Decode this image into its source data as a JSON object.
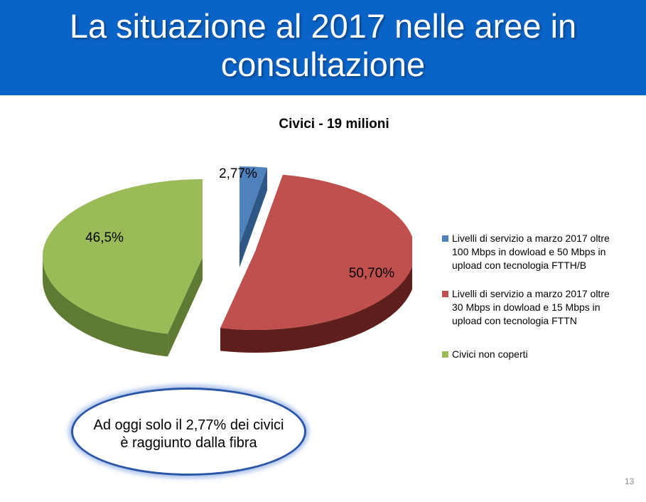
{
  "slide": {
    "title_line1": "La situazione al 2017 nelle aree in",
    "title_line2": "consultazione",
    "callout_line1": "Ad oggi solo il 2,77% dei civici",
    "callout_line2": "è raggiunto dalla fibra",
    "page_number": "13"
  },
  "chart_data": {
    "type": "pie",
    "title": "Civici - 19 milioni",
    "values": [
      2.77,
      50.7,
      46.5
    ],
    "data_labels": [
      "2,77%",
      "50,70%",
      "46,5%"
    ],
    "categories": [
      "Livelli di servizio a marzo 2017 oltre 100 Mbps in dowload e 50 Mbps in upload con tecnologia FTTH/B",
      "Livelli di servizio a marzo 2017 oltre 30 Mbps in dowload e 15 Mbps in upload con tecnologia FTTN",
      "Civici non coperti"
    ],
    "legend_lines": [
      [
        "Livelli di servizio a marzo 2017 oltre",
        "100 Mbps in dowload e 50 Mbps in",
        "upload con tecnologia FTTH/B"
      ],
      [
        "Livelli di servizio a marzo 2017 oltre",
        "30 Mbps in dowload e 15 Mbps in",
        "upload con tecnologia FTTN"
      ],
      [
        "Civici non coperti"
      ]
    ],
    "colors": [
      "#4f81bd",
      "#c0504d",
      "#9bbb59"
    ],
    "side_colors": [
      "#2f5785",
      "#5e1e1c",
      "#5f7a32"
    ],
    "legend_position": "right",
    "style": "3d-exploded"
  }
}
